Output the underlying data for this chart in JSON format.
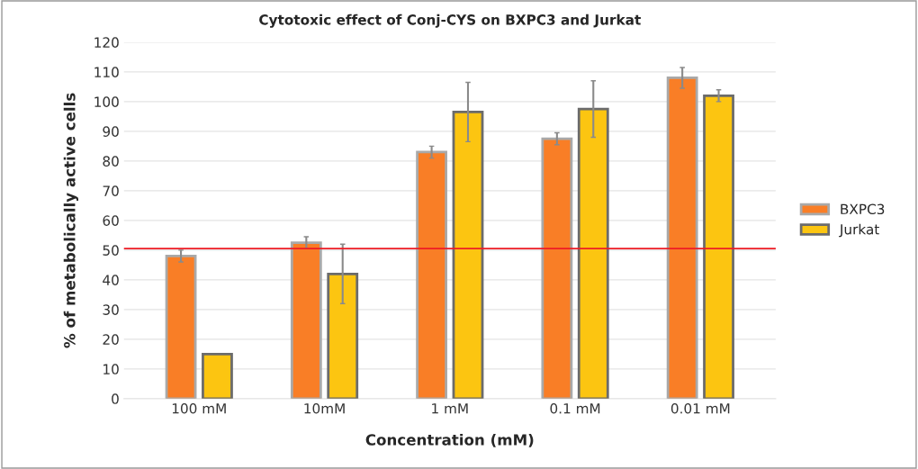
{
  "chart_data": {
    "type": "bar",
    "title": "Cytotoxic effect of Conj-CYS on BXPC3 and Jurkat",
    "xlabel": "Concentration (mM)",
    "ylabel": "% of metabolically active cells",
    "categories": [
      "100 mM",
      "10mM",
      "1 mM",
      "0.1 mM",
      "0.01 mM"
    ],
    "series": [
      {
        "name": "BXPC3",
        "color": "#f97e26",
        "values": [
          48,
          52.5,
          83,
          87.5,
          108
        ],
        "errors": [
          2,
          2,
          2,
          2,
          3.5
        ]
      },
      {
        "name": "Jurkat",
        "color": "#fcc511",
        "values": [
          15,
          42,
          96.5,
          97.5,
          102
        ],
        "errors": [
          null,
          10,
          10,
          9.5,
          2
        ]
      }
    ],
    "ylim": [
      0,
      120
    ],
    "yticks": [
      0,
      10,
      20,
      30,
      40,
      50,
      60,
      70,
      80,
      90,
      100,
      110,
      120
    ],
    "ref_lines": [
      {
        "axis": "y",
        "value": 50.5,
        "color": "#ee1c25"
      }
    ],
    "grid": "y",
    "legend": "right"
  }
}
